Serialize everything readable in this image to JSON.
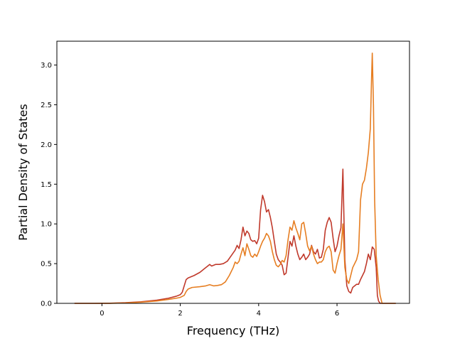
{
  "chart_data": {
    "type": "line",
    "title": "",
    "xlabel": "Frequency (THz)",
    "ylabel": "Partial Density of States",
    "xlim": [
      -1.15,
      7.85
    ],
    "ylim": [
      0.0,
      3.3
    ],
    "xticks": [
      0,
      2,
      4,
      6
    ],
    "xtick_labels": [
      "0",
      "2",
      "4",
      "6"
    ],
    "yticks": [
      0.0,
      0.5,
      1.0,
      1.5,
      2.0,
      2.5,
      3.0
    ],
    "ytick_labels": [
      "0.0",
      "0.5",
      "1.0",
      "1.5",
      "2.0",
      "2.5",
      "3.0"
    ],
    "grid": false,
    "legend": "none",
    "series": [
      {
        "color": "#c0392b",
        "points": [
          [
            -0.7,
            0.0
          ],
          [
            -0.2,
            0.0
          ],
          [
            0.2,
            0.002
          ],
          [
            0.6,
            0.008
          ],
          [
            1.0,
            0.02
          ],
          [
            1.4,
            0.04
          ],
          [
            1.7,
            0.065
          ],
          [
            1.9,
            0.09
          ],
          [
            2.0,
            0.11
          ],
          [
            2.05,
            0.14
          ],
          [
            2.1,
            0.22
          ],
          [
            2.15,
            0.3
          ],
          [
            2.2,
            0.32
          ],
          [
            2.35,
            0.35
          ],
          [
            2.5,
            0.39
          ],
          [
            2.6,
            0.43
          ],
          [
            2.7,
            0.47
          ],
          [
            2.75,
            0.49
          ],
          [
            2.8,
            0.47
          ],
          [
            2.9,
            0.49
          ],
          [
            3.0,
            0.49
          ],
          [
            3.1,
            0.5
          ],
          [
            3.2,
            0.53
          ],
          [
            3.3,
            0.6
          ],
          [
            3.4,
            0.67
          ],
          [
            3.45,
            0.73
          ],
          [
            3.5,
            0.69
          ],
          [
            3.55,
            0.8
          ],
          [
            3.6,
            0.96
          ],
          [
            3.65,
            0.85
          ],
          [
            3.7,
            0.91
          ],
          [
            3.75,
            0.88
          ],
          [
            3.8,
            0.8
          ],
          [
            3.85,
            0.78
          ],
          [
            3.9,
            0.79
          ],
          [
            3.95,
            0.75
          ],
          [
            4.0,
            0.82
          ],
          [
            4.05,
            1.18
          ],
          [
            4.1,
            1.36
          ],
          [
            4.15,
            1.28
          ],
          [
            4.2,
            1.15
          ],
          [
            4.25,
            1.18
          ],
          [
            4.3,
            1.08
          ],
          [
            4.35,
            0.95
          ],
          [
            4.4,
            0.78
          ],
          [
            4.45,
            0.62
          ],
          [
            4.5,
            0.55
          ],
          [
            4.55,
            0.52
          ],
          [
            4.6,
            0.48
          ],
          [
            4.65,
            0.36
          ],
          [
            4.7,
            0.38
          ],
          [
            4.75,
            0.58
          ],
          [
            4.8,
            0.78
          ],
          [
            4.85,
            0.72
          ],
          [
            4.9,
            0.85
          ],
          [
            4.95,
            0.72
          ],
          [
            5.0,
            0.62
          ],
          [
            5.05,
            0.55
          ],
          [
            5.1,
            0.58
          ],
          [
            5.15,
            0.62
          ],
          [
            5.2,
            0.55
          ],
          [
            5.25,
            0.58
          ],
          [
            5.3,
            0.62
          ],
          [
            5.35,
            0.73
          ],
          [
            5.4,
            0.65
          ],
          [
            5.45,
            0.62
          ],
          [
            5.5,
            0.68
          ],
          [
            5.55,
            0.57
          ],
          [
            5.6,
            0.58
          ],
          [
            5.65,
            0.68
          ],
          [
            5.7,
            0.92
          ],
          [
            5.75,
            1.02
          ],
          [
            5.8,
            1.08
          ],
          [
            5.85,
            1.02
          ],
          [
            5.9,
            0.82
          ],
          [
            5.95,
            0.65
          ],
          [
            6.0,
            0.72
          ],
          [
            6.05,
            0.85
          ],
          [
            6.1,
            0.95
          ],
          [
            6.15,
            1.69
          ],
          [
            6.2,
            0.55
          ],
          [
            6.25,
            0.22
          ],
          [
            6.3,
            0.15
          ],
          [
            6.35,
            0.13
          ],
          [
            6.4,
            0.2
          ],
          [
            6.5,
            0.24
          ],
          [
            6.55,
            0.24
          ],
          [
            6.6,
            0.3
          ],
          [
            6.7,
            0.4
          ],
          [
            6.75,
            0.5
          ],
          [
            6.8,
            0.62
          ],
          [
            6.85,
            0.55
          ],
          [
            6.9,
            0.71
          ],
          [
            6.95,
            0.68
          ],
          [
            7.0,
            0.45
          ],
          [
            7.03,
            0.1
          ],
          [
            7.06,
            0.03
          ],
          [
            7.1,
            0.0
          ],
          [
            7.5,
            0.0
          ]
        ]
      },
      {
        "color": "#e67e22",
        "points": [
          [
            -0.7,
            0.0
          ],
          [
            -0.2,
            0.0
          ],
          [
            0.2,
            0.001
          ],
          [
            0.6,
            0.005
          ],
          [
            1.0,
            0.015
          ],
          [
            1.4,
            0.03
          ],
          [
            1.7,
            0.05
          ],
          [
            1.9,
            0.065
          ],
          [
            2.0,
            0.075
          ],
          [
            2.1,
            0.1
          ],
          [
            2.15,
            0.15
          ],
          [
            2.2,
            0.18
          ],
          [
            2.3,
            0.2
          ],
          [
            2.5,
            0.21
          ],
          [
            2.65,
            0.22
          ],
          [
            2.75,
            0.235
          ],
          [
            2.85,
            0.22
          ],
          [
            2.95,
            0.225
          ],
          [
            3.05,
            0.235
          ],
          [
            3.15,
            0.27
          ],
          [
            3.25,
            0.35
          ],
          [
            3.35,
            0.45
          ],
          [
            3.4,
            0.52
          ],
          [
            3.45,
            0.5
          ],
          [
            3.5,
            0.53
          ],
          [
            3.55,
            0.62
          ],
          [
            3.6,
            0.7
          ],
          [
            3.65,
            0.6
          ],
          [
            3.7,
            0.75
          ],
          [
            3.75,
            0.68
          ],
          [
            3.8,
            0.6
          ],
          [
            3.85,
            0.58
          ],
          [
            3.9,
            0.62
          ],
          [
            3.95,
            0.59
          ],
          [
            4.0,
            0.65
          ],
          [
            4.05,
            0.72
          ],
          [
            4.1,
            0.78
          ],
          [
            4.15,
            0.82
          ],
          [
            4.2,
            0.88
          ],
          [
            4.25,
            0.85
          ],
          [
            4.3,
            0.78
          ],
          [
            4.35,
            0.65
          ],
          [
            4.4,
            0.55
          ],
          [
            4.45,
            0.48
          ],
          [
            4.5,
            0.46
          ],
          [
            4.55,
            0.49
          ],
          [
            4.6,
            0.54
          ],
          [
            4.65,
            0.52
          ],
          [
            4.7,
            0.6
          ],
          [
            4.75,
            0.8
          ],
          [
            4.8,
            0.96
          ],
          [
            4.85,
            0.92
          ],
          [
            4.9,
            1.04
          ],
          [
            4.95,
            0.95
          ],
          [
            5.0,
            0.88
          ],
          [
            5.05,
            0.8
          ],
          [
            5.1,
            1.0
          ],
          [
            5.15,
            1.02
          ],
          [
            5.2,
            0.88
          ],
          [
            5.25,
            0.72
          ],
          [
            5.3,
            0.66
          ],
          [
            5.35,
            0.72
          ],
          [
            5.4,
            0.62
          ],
          [
            5.45,
            0.55
          ],
          [
            5.5,
            0.5
          ],
          [
            5.55,
            0.52
          ],
          [
            5.6,
            0.52
          ],
          [
            5.65,
            0.55
          ],
          [
            5.7,
            0.65
          ],
          [
            5.75,
            0.7
          ],
          [
            5.8,
            0.72
          ],
          [
            5.85,
            0.65
          ],
          [
            5.9,
            0.42
          ],
          [
            5.95,
            0.38
          ],
          [
            6.0,
            0.5
          ],
          [
            6.05,
            0.6
          ],
          [
            6.1,
            0.68
          ],
          [
            6.15,
            1.0
          ],
          [
            6.2,
            0.45
          ],
          [
            6.25,
            0.3
          ],
          [
            6.3,
            0.25
          ],
          [
            6.35,
            0.35
          ],
          [
            6.4,
            0.45
          ],
          [
            6.45,
            0.5
          ],
          [
            6.5,
            0.55
          ],
          [
            6.55,
            0.65
          ],
          [
            6.6,
            1.3
          ],
          [
            6.65,
            1.5
          ],
          [
            6.7,
            1.55
          ],
          [
            6.75,
            1.7
          ],
          [
            6.8,
            1.9
          ],
          [
            6.85,
            2.2
          ],
          [
            6.88,
            2.8
          ],
          [
            6.9,
            3.15
          ],
          [
            6.93,
            2.5
          ],
          [
            6.96,
            1.3
          ],
          [
            7.0,
            0.6
          ],
          [
            7.05,
            0.3
          ],
          [
            7.1,
            0.1
          ],
          [
            7.15,
            0.0
          ],
          [
            7.5,
            0.0
          ]
        ]
      }
    ]
  }
}
